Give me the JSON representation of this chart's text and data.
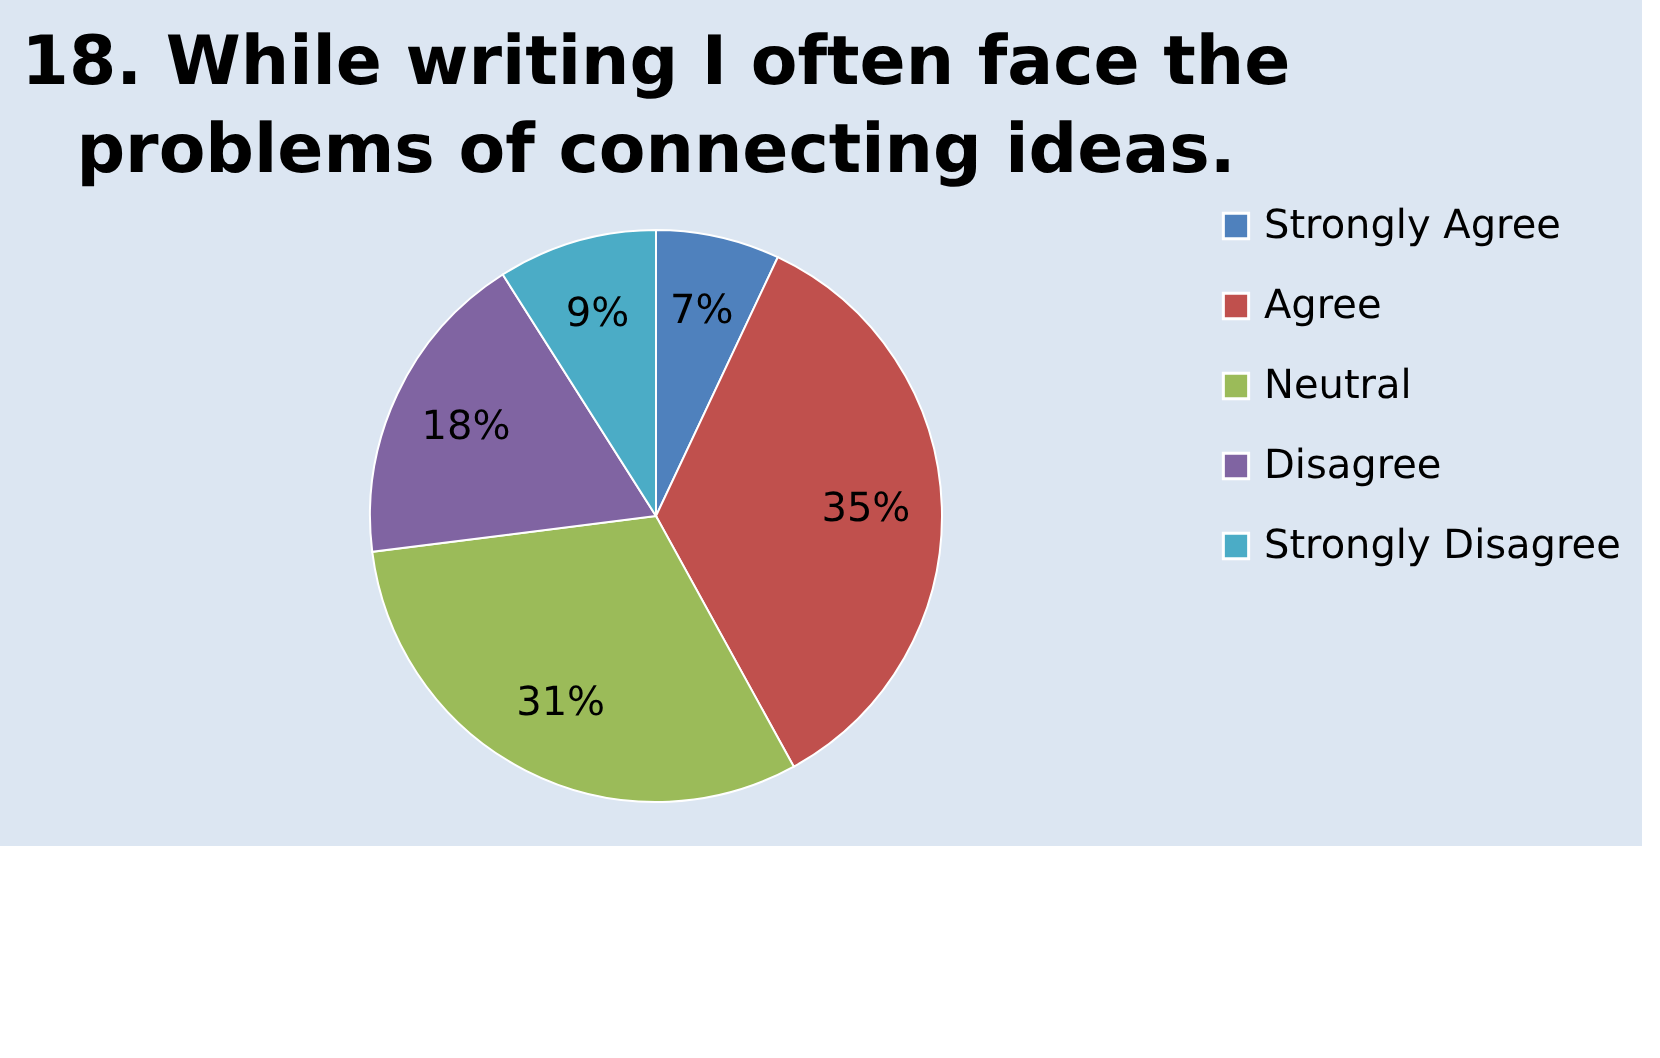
{
  "chart_data": {
    "type": "pie",
    "title": "18. While writing I often face the problems of connecting ideas.",
    "categories": [
      "Strongly Agree",
      "Agree",
      "Neutral",
      "Disagree",
      "Strongly Disagree"
    ],
    "values": [
      7,
      35,
      31,
      18,
      9
    ],
    "value_labels": [
      "7%",
      "35%",
      "31%",
      "18%",
      "9%"
    ],
    "colors": [
      "#4f81bd",
      "#c0504d",
      "#9bbb59",
      "#8064a2",
      "#4bacc6"
    ],
    "legend": "right"
  }
}
